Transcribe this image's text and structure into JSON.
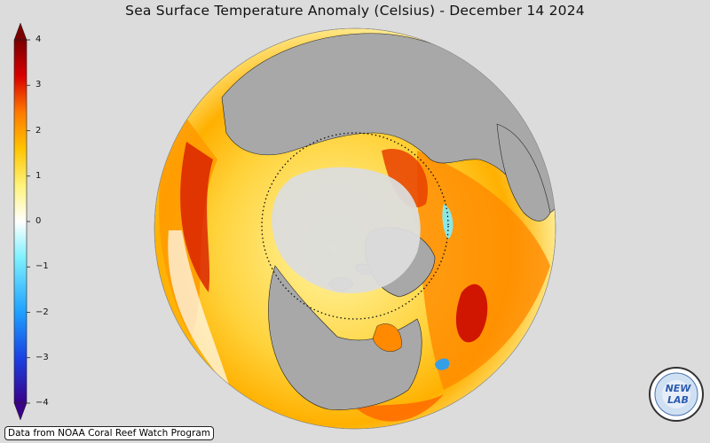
{
  "title": "Sea Surface Temperature Anomaly (Celsius) - December 14 2024",
  "credit": "Data from NOAA Coral Reef Watch Program",
  "logo": {
    "name": "NEWLAB",
    "text": "NEW LAB"
  },
  "colorbar": {
    "min": -4,
    "max": 4,
    "ticks": [
      {
        "value": 4,
        "label": "4"
      },
      {
        "value": 3,
        "label": "3"
      },
      {
        "value": 2,
        "label": "2"
      },
      {
        "value": 1,
        "label": "1"
      },
      {
        "value": 0,
        "label": "0"
      },
      {
        "value": -1,
        "label": "−1"
      },
      {
        "value": -2,
        "label": "−2"
      },
      {
        "value": -3,
        "label": "−3"
      },
      {
        "value": -4,
        "label": "−4"
      }
    ],
    "colors": [
      "#3a0087",
      "#1a3fe0",
      "#1ea0ff",
      "#7ff0ff",
      "#ffffff",
      "#fff27a",
      "#ffc400",
      "#ff7a00",
      "#d80000",
      "#7a0000"
    ]
  },
  "map": {
    "projection": "orthographic, north polar view",
    "land_color": "#a8a8a8",
    "ice_color": "#dcdcdc",
    "arctic_circle": "dotted"
  }
}
